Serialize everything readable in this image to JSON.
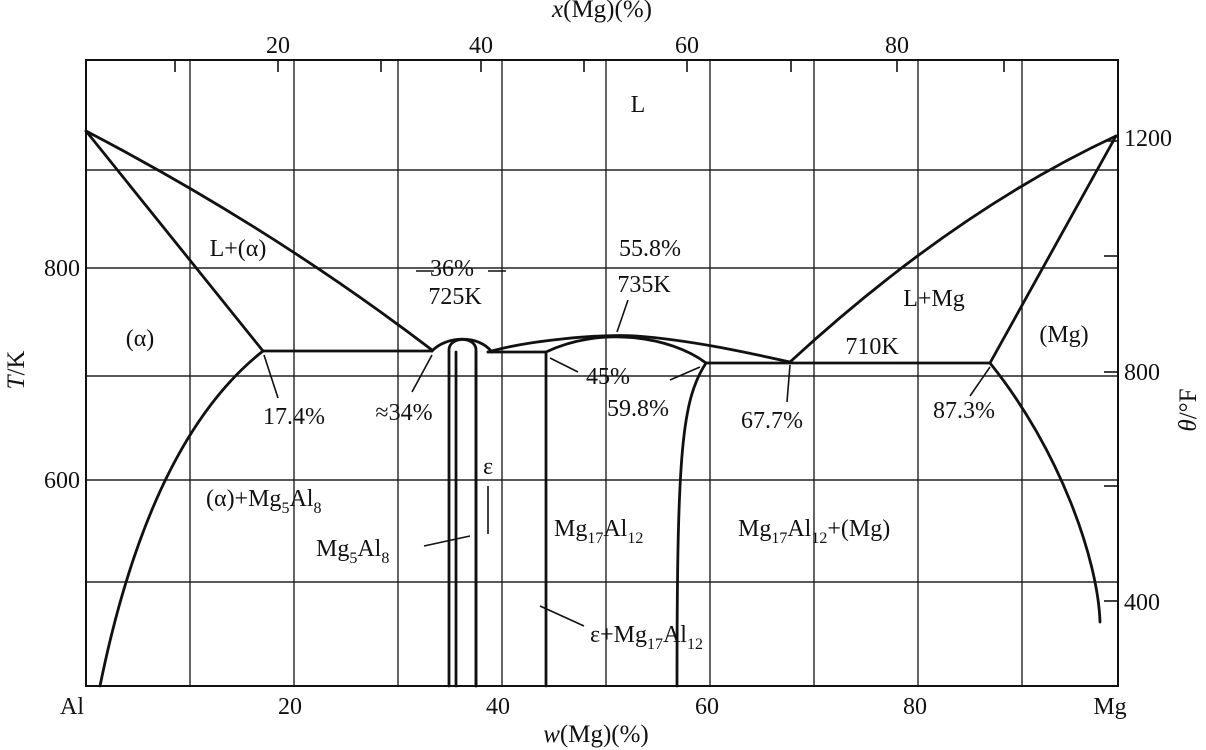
{
  "axes": {
    "bottom_title": {
      "var": "w",
      "rest": "(Mg)(%)"
    },
    "top_title": {
      "var": "x",
      "rest": "(Mg)(%)"
    },
    "left_title": {
      "var": "T",
      "rest": "/K"
    },
    "right_title": {
      "var": "θ",
      "rest": "/°F"
    },
    "bottom_end_labels": {
      "left": "Al",
      "right": "Mg"
    },
    "bottom_ticks": [
      20,
      40,
      60,
      80
    ],
    "top_ticks": [
      20,
      40,
      60,
      80
    ],
    "left_ticks": [
      600,
      800
    ],
    "right_ticks": [
      400,
      800,
      1200
    ]
  },
  "labels": {
    "liquid": "L",
    "l_alpha": "L+(α)",
    "alpha": "(α)",
    "p17_4": "17.4%",
    "p36": "36%",
    "t725": "725K",
    "p34": "≈34%",
    "p55_8": "55.8%",
    "t735": "735K",
    "p45": "45%",
    "p59_8": "59.8%",
    "p67_7": "67.7%",
    "p87_3": "87.3%",
    "t710": "710K",
    "l_mg": "L+Mg",
    "mg_phase": "(Mg)",
    "epsilon": "ε",
    "alpha_mg5al8": {
      "main": "(α)+Mg",
      "s1": "5",
      "mid": "Al",
      "s2": "8"
    },
    "mg5al8": {
      "main": "Mg",
      "s1": "5",
      "mid": "Al",
      "s2": "8"
    },
    "mg17al12": {
      "main": "Mg",
      "s1": "17",
      "mid": "Al",
      "s2": "12"
    },
    "mg17al12_mg": {
      "main": "Mg",
      "s1": "17",
      "mid": "Al",
      "s2": "12",
      "tail": "+(Mg)"
    },
    "eps_mg17al12": {
      "main": "ε+Mg",
      "s1": "17",
      "mid": "Al",
      "s2": "12"
    }
  },
  "chart_data": {
    "type": "phase-diagram",
    "system": "Al-Mg",
    "x_axis": {
      "quantity": "w(Mg)",
      "unit": "%",
      "range": [
        0,
        100
      ]
    },
    "top_axis": {
      "quantity": "x(Mg)",
      "unit": "%",
      "ticks": [
        20,
        40,
        60,
        80
      ]
    },
    "y_axis": {
      "quantity": "T",
      "unit": "K",
      "ticks": [
        600,
        800
      ],
      "range": [
        390,
        980
      ]
    },
    "right_axis": {
      "quantity": "θ",
      "unit": "°F",
      "ticks": [
        400,
        800,
        1200
      ]
    },
    "invariants": [
      {
        "type": "eutectic",
        "T_K": 725,
        "label": "725K",
        "compositions_wt_pct": [
          17.4,
          34,
          36
        ]
      },
      {
        "type": "congruent-maximum",
        "T_K": 735,
        "label": "735K",
        "composition_wt_pct": 55.8
      },
      {
        "type": "eutectic",
        "T_K": 710,
        "label": "710K",
        "compositions_wt_pct": [
          59.8,
          67.7,
          87.3
        ]
      },
      {
        "type": "peritectic",
        "compositions_wt_pct": [
          45
        ]
      }
    ],
    "phase_regions": [
      "L",
      "L+(α)",
      "(α)",
      "(α)+Mg5Al8",
      "Mg5Al8",
      "ε",
      "ε+Mg17Al12",
      "Mg17Al12",
      "Mg17Al12+(Mg)",
      "L+Mg",
      "(Mg)"
    ]
  }
}
